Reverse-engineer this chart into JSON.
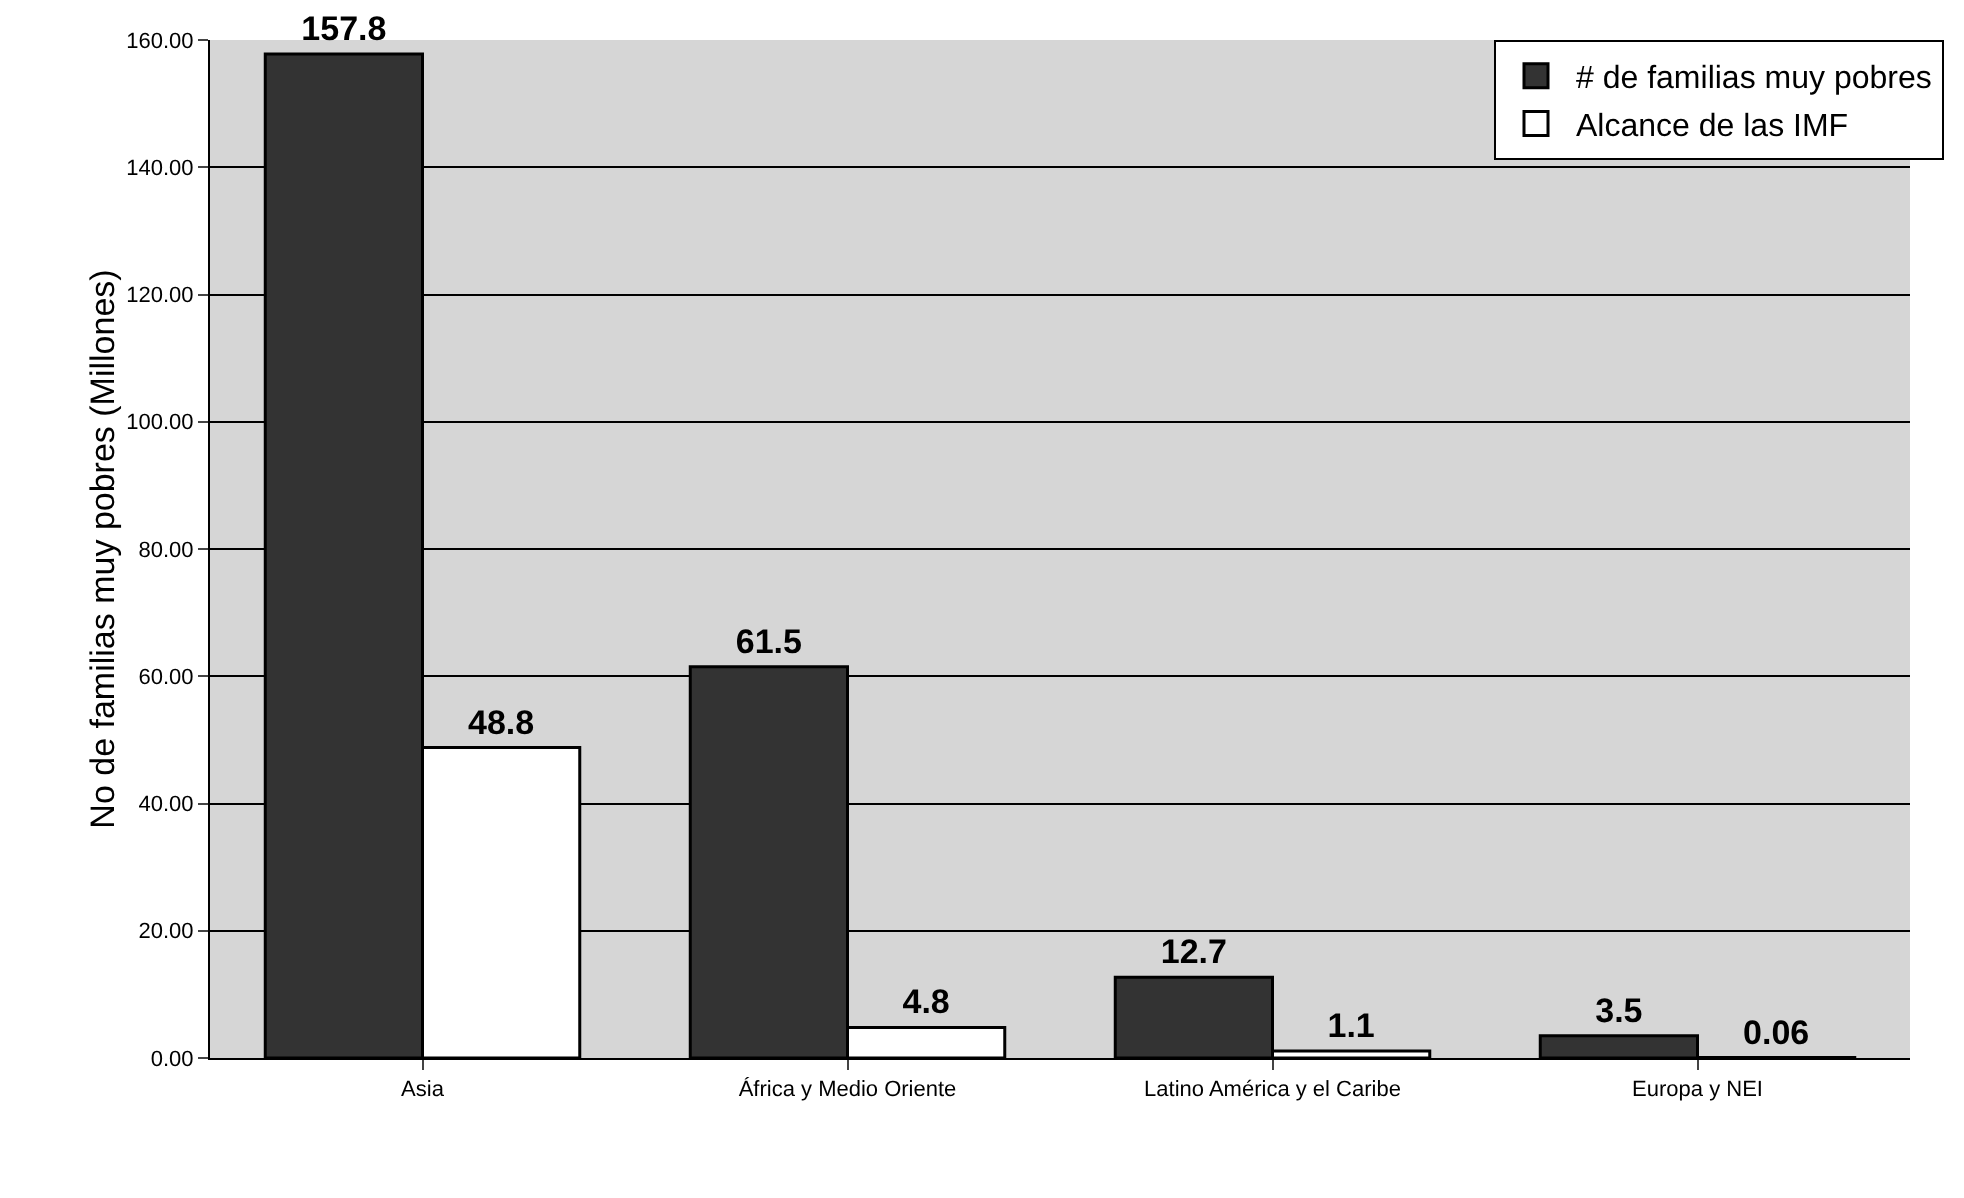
{
  "chart_data": {
    "type": "bar",
    "ylabel": "No de familias muy pobres (Millones)",
    "categories": [
      "Asia",
      "África y Medio Oriente",
      "Latino América y el Caribe",
      "Europa y NEI"
    ],
    "series": [
      {
        "name": "# de familias muy pobres",
        "color": "#333333",
        "values": [
          157.8,
          61.5,
          12.7,
          3.5
        ]
      },
      {
        "name": "Alcance de las IMF",
        "color": "#ffffff",
        "values": [
          48.8,
          4.8,
          1.1,
          0.06
        ]
      }
    ],
    "ylim": [
      0,
      160
    ],
    "yticks": [
      {
        "value": 0,
        "label": "0.00"
      },
      {
        "value": 20,
        "label": "20.00"
      },
      {
        "value": 40,
        "label": "40.00"
      },
      {
        "value": 60,
        "label": "60.00"
      },
      {
        "value": 80,
        "label": "80.00"
      },
      {
        "value": 100,
        "label": "100.00"
      },
      {
        "value": 120,
        "label": "120.00"
      },
      {
        "value": 140,
        "label": "140.00"
      },
      {
        "value": 160,
        "label": "160.00"
      }
    ],
    "grid": "y",
    "legend": "top right",
    "data_labels": true
  }
}
